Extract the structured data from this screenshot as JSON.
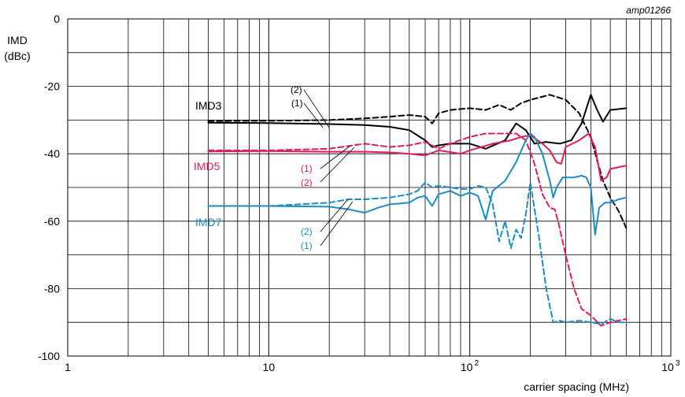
{
  "chart_data": {
    "type": "line",
    "figure_id": "amp01266",
    "ylabel_line1": "IMD",
    "ylabel_line2": "(dBc)",
    "xlabel": "carrier spacing (MHz)",
    "x_scale": "log",
    "xlim": [
      1,
      1000
    ],
    "ylim": [
      -100,
      0
    ],
    "grid": true,
    "y_ticks": [
      "0",
      "-20",
      "-40",
      "-60",
      "-80",
      "-100"
    ],
    "x_ticks": [
      {
        "value": 1,
        "base": "1",
        "exp": ""
      },
      {
        "value": 10,
        "base": "10",
        "exp": ""
      },
      {
        "value": 100,
        "base": "10",
        "exp": "2"
      },
      {
        "value": 1000,
        "base": "10",
        "exp": "3"
      }
    ],
    "colors": {
      "imd3": "#000000",
      "imd5": "#e5195e",
      "imd7": "#1a8cc8"
    },
    "series": [
      {
        "name": "IMD3",
        "curve": "(1)",
        "color": "#000000",
        "dashed": false,
        "x": [
          5,
          10,
          20,
          30,
          40,
          50,
          60,
          65,
          70,
          80,
          100,
          120,
          150,
          170,
          190,
          210,
          240,
          280,
          320,
          360,
          400,
          430,
          460,
          500,
          600
        ],
        "y": [
          -30.8,
          -30.9,
          -31.2,
          -31.5,
          -32,
          -33,
          -36,
          -38,
          -37.5,
          -37,
          -37,
          -38.5,
          -36,
          -31,
          -33,
          -37,
          -36.5,
          -37,
          -36,
          -31,
          -22.5,
          -27,
          -30.5,
          -27,
          -26.5
        ]
      },
      {
        "name": "IMD3",
        "curve": "(2)",
        "color": "#000000",
        "dashed": true,
        "x": [
          5,
          10,
          20,
          30,
          40,
          50,
          60,
          65,
          70,
          80,
          100,
          120,
          140,
          160,
          180,
          200,
          250,
          300,
          350,
          400,
          430,
          460,
          500,
          550,
          600
        ],
        "y": [
          -30.3,
          -30.2,
          -30,
          -29.5,
          -29,
          -28.5,
          -29,
          -31,
          -28,
          -27,
          -26.5,
          -27,
          -25.5,
          -27,
          -25,
          -24,
          -22.5,
          -24,
          -28,
          -35,
          -42,
          -48,
          -53,
          -57,
          -62
        ]
      },
      {
        "name": "IMD5",
        "curve": "(1)",
        "color": "#e5195e",
        "dashed": false,
        "x": [
          5,
          10,
          20,
          30,
          40,
          50,
          60,
          70,
          80,
          90,
          100,
          130,
          160,
          180,
          200,
          230,
          250,
          270,
          285,
          300,
          350,
          390,
          420,
          450,
          480,
          500,
          600
        ],
        "y": [
          -39.3,
          -39.2,
          -39.4,
          -39.4,
          -39.6,
          -40,
          -40.5,
          -39,
          -39.5,
          -40,
          -39,
          -37,
          -36,
          -35,
          -34.5,
          -37,
          -39,
          -42.5,
          -43,
          -38,
          -36,
          -34,
          -38,
          -48,
          -47,
          -44.5,
          -43.5
        ]
      },
      {
        "name": "IMD5",
        "curve": "(2)",
        "color": "#e5195e",
        "dashed": true,
        "x": [
          5,
          10,
          20,
          30,
          40,
          50,
          60,
          70,
          80,
          100,
          120,
          150,
          170,
          190,
          210,
          230,
          250,
          265,
          275,
          300,
          330,
          360,
          400,
          450,
          500,
          600
        ],
        "y": [
          -39,
          -39,
          -38.5,
          -37,
          -38,
          -37.5,
          -36.5,
          -38.5,
          -37,
          -35,
          -34,
          -34,
          -34,
          -36,
          -43,
          -52,
          -56,
          -56.5,
          -60,
          -70,
          -80,
          -86,
          -88,
          -91,
          -90,
          -89
        ]
      },
      {
        "name": "IMD7",
        "curve": "(1)",
        "color": "#1a8cc8",
        "dashed": false,
        "x": [
          5,
          10,
          20,
          25,
          30,
          35,
          40,
          50,
          55,
          60,
          65,
          70,
          80,
          90,
          100,
          110,
          120,
          130,
          150,
          170,
          190,
          200,
          210,
          230,
          250,
          260,
          270,
          290,
          330,
          360,
          380,
          400,
          420,
          440,
          470,
          500,
          550,
          600
        ],
        "y": [
          -55.5,
          -55.5,
          -55.7,
          -56.5,
          -57.5,
          -56,
          -55,
          -54.5,
          -53,
          -52.5,
          -55.5,
          -52,
          -51,
          -52.5,
          -51.5,
          -52.5,
          -59.5,
          -51,
          -48,
          -42.5,
          -36,
          -34,
          -35,
          -40,
          -48,
          -53,
          -50,
          -47,
          -47,
          -46.5,
          -47,
          -50,
          -64,
          -56,
          -54.5,
          -54.5,
          -53.5,
          -53
        ]
      },
      {
        "name": "IMD7",
        "curve": "(2)",
        "color": "#1a8cc8",
        "dashed": true,
        "x": [
          5,
          10,
          20,
          25,
          30,
          40,
          50,
          55,
          60,
          65,
          70,
          80,
          90,
          100,
          110,
          120,
          130,
          140,
          150,
          160,
          170,
          180,
          190,
          200,
          220,
          240,
          260,
          280,
          300,
          350,
          400,
          450,
          500,
          550,
          600
        ],
        "y": [
          -55.5,
          -55.5,
          -54.5,
          -53.5,
          -53.5,
          -53,
          -52,
          -51,
          -48.5,
          -50,
          -49.5,
          -50,
          -50.5,
          -50.5,
          -49.5,
          -50,
          -55,
          -66,
          -60,
          -68,
          -62.5,
          -65,
          -58,
          -48.5,
          -64,
          -80,
          -90,
          -89.5,
          -90,
          -89.5,
          -90,
          -90.5,
          -89,
          -90,
          -90
        ]
      }
    ],
    "annotations": [
      {
        "text": "IMD3",
        "color": "#000000"
      },
      {
        "text": "IMD5",
        "color": "#e5195e"
      },
      {
        "text": "IMD7",
        "color": "#1a8cc8"
      },
      {
        "text": "(2)",
        "color": "#000000"
      },
      {
        "text": "(1)",
        "color": "#000000"
      },
      {
        "text": "(1)",
        "color": "#e5195e"
      },
      {
        "text": "(2)",
        "color": "#e5195e"
      },
      {
        "text": "(2)",
        "color": "#1a8cc8"
      },
      {
        "text": "(1)",
        "color": "#1a8cc8"
      }
    ]
  }
}
